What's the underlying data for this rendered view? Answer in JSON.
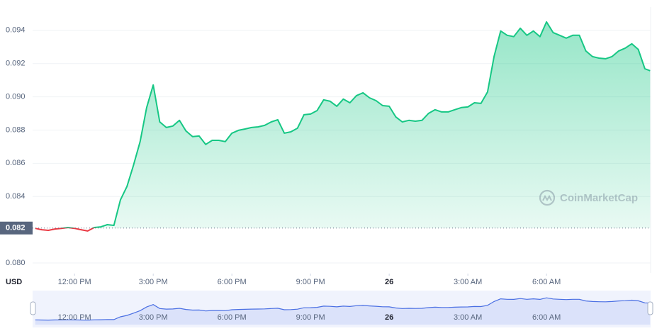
{
  "chart_data": {
    "type": "line",
    "ylabel": "USD",
    "watermark": "CoinMarketCap",
    "reference": {
      "value": 0.0821,
      "label": "0.082"
    },
    "x": [
      10.5,
      10.75,
      11,
      11.25,
      11.5,
      11.75,
      12,
      12.25,
      12.5,
      12.75,
      13,
      13.25,
      13.5,
      13.75,
      14,
      14.25,
      14.5,
      14.75,
      15,
      15.25,
      15.5,
      15.75,
      16,
      16.25,
      16.5,
      16.75,
      17,
      17.25,
      17.5,
      17.75,
      18,
      18.25,
      18.5,
      18.75,
      19,
      19.25,
      19.5,
      19.75,
      20,
      20.25,
      20.5,
      20.75,
      21,
      21.25,
      21.5,
      21.75,
      22,
      22.25,
      22.5,
      22.75,
      23,
      23.25,
      23.5,
      23.75,
      24,
      24.25,
      24.5,
      24.75,
      25,
      25.25,
      25.5,
      25.75,
      26,
      26.25,
      26.5,
      26.75,
      27,
      27.25,
      27.5,
      27.75,
      28,
      28.25,
      28.5,
      28.75,
      29,
      29.25,
      29.5,
      29.75,
      30,
      30.25,
      30.5,
      30.75,
      31,
      31.25,
      31.5,
      31.75,
      32,
      32.25,
      32.5,
      32.75,
      33,
      33.25,
      33.5,
      33.75,
      33.95
    ],
    "series": [
      {
        "color": "#16c784",
        "color_below": "#ea3943",
        "values": [
          0.08208,
          0.082,
          0.08196,
          0.08204,
          0.08208,
          0.08213,
          0.08208,
          0.082,
          0.08192,
          0.08213,
          0.08217,
          0.0823,
          0.08226,
          0.08379,
          0.08461,
          0.08589,
          0.0873,
          0.08935,
          0.09071,
          0.08849,
          0.08815,
          0.08824,
          0.08858,
          0.08794,
          0.0876,
          0.08764,
          0.08713,
          0.08738,
          0.08738,
          0.0873,
          0.08781,
          0.08798,
          0.08806,
          0.08815,
          0.08819,
          0.08828,
          0.08849,
          0.08862,
          0.08781,
          0.08789,
          0.08811,
          0.08892,
          0.08896,
          0.08917,
          0.08982,
          0.08973,
          0.08943,
          0.08986,
          0.08964,
          0.09007,
          0.09024,
          0.08994,
          0.08977,
          0.08947,
          0.08943,
          0.08879,
          0.08849,
          0.08858,
          0.08853,
          0.08858,
          0.089,
          0.08922,
          0.08909,
          0.08909,
          0.08922,
          0.08935,
          0.08939,
          0.08964,
          0.0896,
          0.09029,
          0.09242,
          0.09396,
          0.0937,
          0.09362,
          0.09413,
          0.0937,
          0.09396,
          0.09362,
          0.09451,
          0.09387,
          0.0937,
          0.09353,
          0.0937,
          0.0937,
          0.09276,
          0.09242,
          0.09233,
          0.09229,
          0.09242,
          0.09276,
          0.09293,
          0.09319,
          0.09285,
          0.09169,
          0.09157
        ]
      }
    ],
    "xlim": [
      10.4,
      33.97
    ],
    "xticks": [
      {
        "value": 12,
        "label": "12:00 PM"
      },
      {
        "value": 15,
        "label": "3:00 PM"
      },
      {
        "value": 18,
        "label": "6:00 PM"
      },
      {
        "value": 21,
        "label": "9:00 PM"
      },
      {
        "value": 24,
        "label": "26"
      },
      {
        "value": 27,
        "label": "3:00 AM"
      },
      {
        "value": 30,
        "label": "6:00 AM"
      }
    ],
    "ylim": [
      0.0794,
      0.0954
    ],
    "yticks": [
      {
        "value": 0.08,
        "label": "0.080"
      },
      0.084,
      0.086,
      0.088,
      {
        "value": 0.09,
        "label": "0.090"
      },
      0.092,
      0.094
    ],
    "grid": true,
    "navigator_color": "#4a6fe3"
  }
}
